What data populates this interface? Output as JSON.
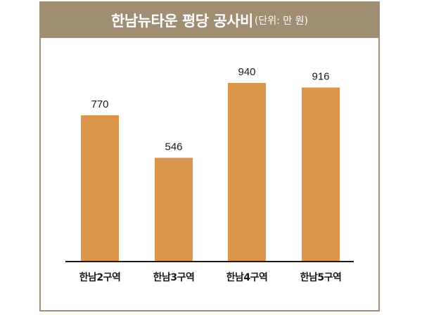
{
  "title": {
    "main": "한남뉴타운 평당 공사비",
    "unit": "(단위: 만 원)"
  },
  "colors": {
    "frame": "#a08e72",
    "bar": "#db954a",
    "axis": "#1a1a1a",
    "text": "#1a1a1a"
  },
  "chart_data": {
    "type": "bar",
    "title": "한남뉴타운 평당 공사비",
    "unit": "(단위: 만 원)",
    "categories": [
      "한남2구역",
      "한남3구역",
      "한남4구역",
      "한남5구역"
    ],
    "values": [
      770,
      546,
      940,
      916
    ],
    "xlabel": "",
    "ylabel": "",
    "ylim": [
      0,
      940
    ],
    "grid": false,
    "legend": "none"
  }
}
